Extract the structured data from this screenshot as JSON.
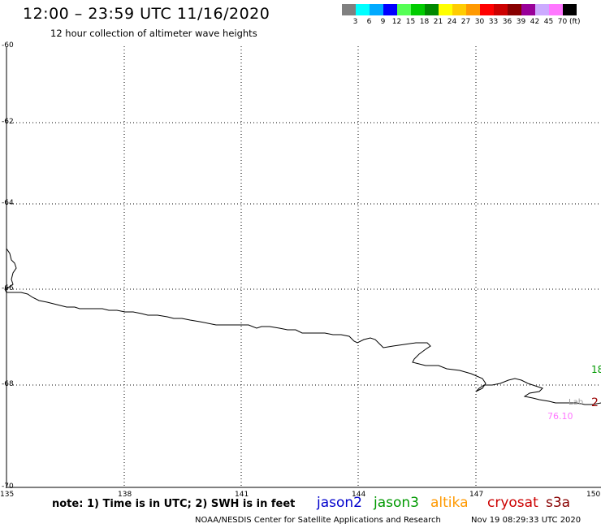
{
  "header": {
    "title": "12:00 – 23:59 UTC 11/16/2020",
    "subtitle": "12 hour collection of altimeter wave heights"
  },
  "legend": {
    "colors": [
      "#808080",
      "#00ffff",
      "#00aaff",
      "#0000ff",
      "#55ff55",
      "#00cc00",
      "#008800",
      "#ffff00",
      "#ffcc00",
      "#ff9900",
      "#ff0000",
      "#cc0000",
      "#880000",
      "#990099",
      "#ccaaff",
      "#ff77ff",
      "#000000"
    ],
    "labels": [
      "3",
      "6",
      "9",
      "12",
      "15",
      "18",
      "21",
      "24",
      "27",
      "30",
      "33",
      "36",
      "39",
      "42",
      "45",
      "70"
    ],
    "unit": "(ft)"
  },
  "map": {
    "lat_labels": [
      "-60",
      "-62",
      "-64",
      "-66",
      "-68",
      "-70"
    ],
    "lon_labels": [
      "135",
      "138",
      "141",
      "144",
      "147",
      "150"
    ],
    "annotations": [
      {
        "text": "18",
        "color": "#009900"
      },
      {
        "text": "2",
        "color": "#990000"
      },
      {
        "text": "76.10",
        "color": "#ff77ff"
      },
      {
        "text": "Lab",
        "color": "#999999"
      }
    ]
  },
  "footer": {
    "note": "note: 1) Time is in UTC; 2) SWH is in feet",
    "satellites": [
      {
        "name": "jason2",
        "color": "#0000cc"
      },
      {
        "name": "jason3",
        "color": "#009900"
      },
      {
        "name": "altika",
        "color": "#ff9900"
      },
      {
        "name": "cryosat",
        "color": "#cc0000"
      },
      {
        "name": "s3a",
        "color": "#880000"
      }
    ],
    "credit": "NOAA/NESDIS Center for Satellite Applications and Research",
    "timestamp": "Nov 19 08:29:33 UTC 2020"
  }
}
